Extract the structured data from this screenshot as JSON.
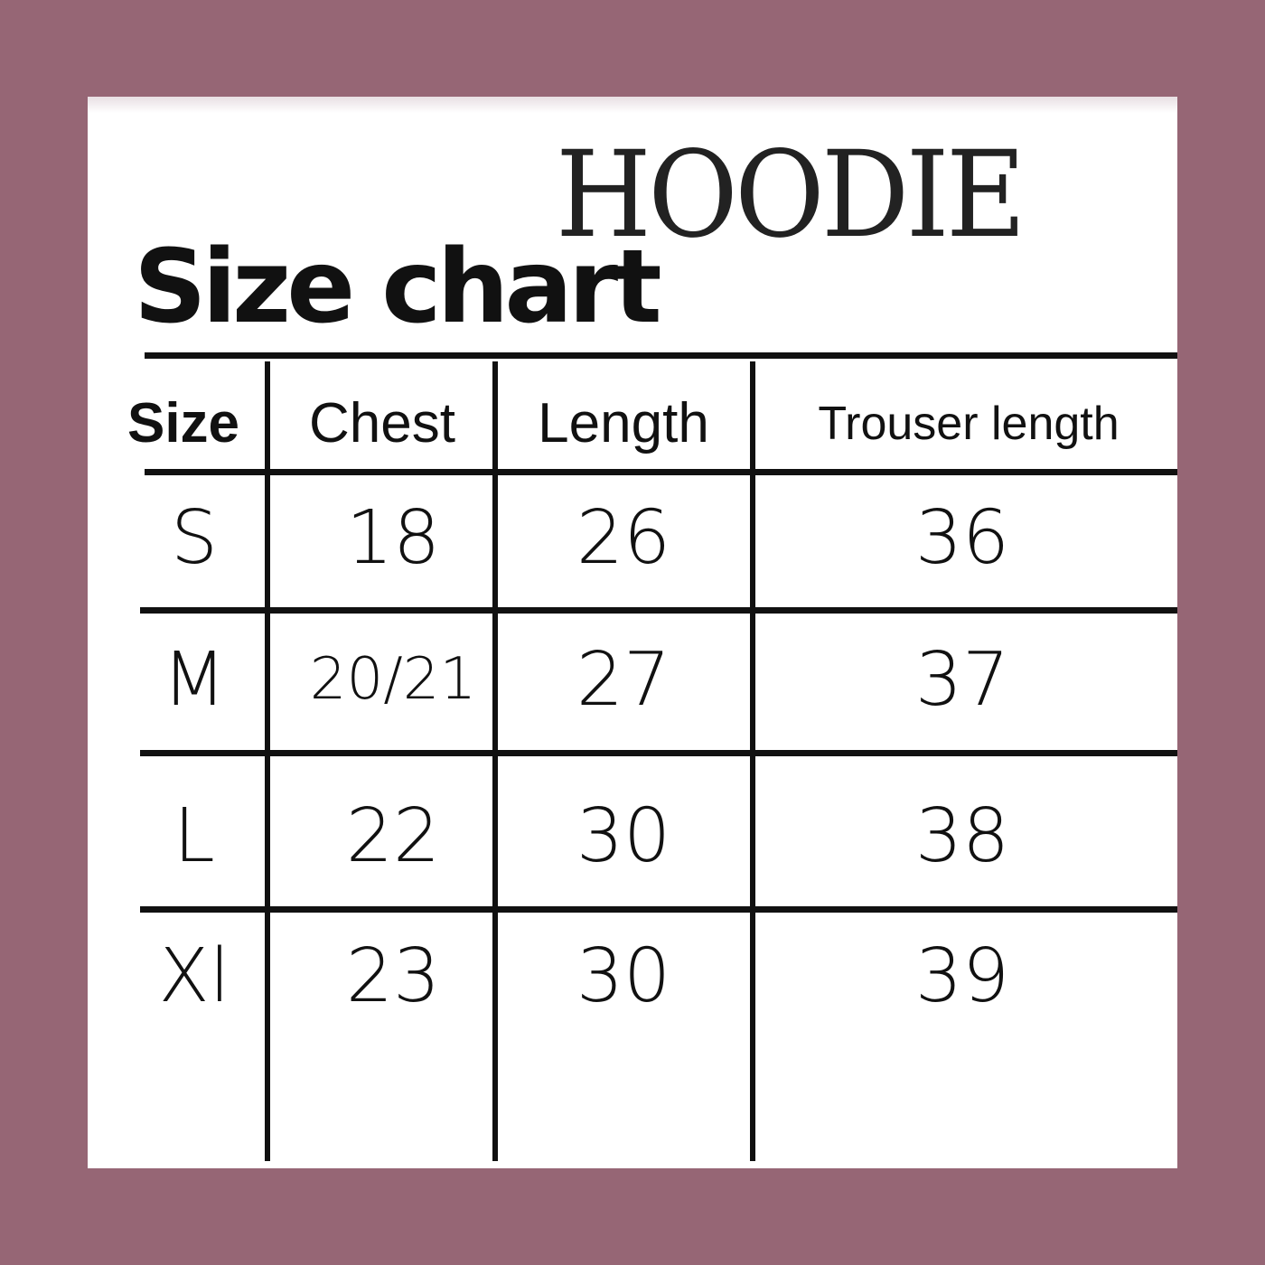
{
  "colors": {
    "background": "#966675",
    "card": "#ffffff",
    "ink": "#111111"
  },
  "title": "HOODIE",
  "subtitle": "Size chart",
  "table": {
    "headers": [
      "Size",
      "Chest",
      "Length",
      "Trouser length"
    ],
    "rows": [
      [
        "S",
        "18",
        "26",
        "36"
      ],
      [
        "M",
        "20/21",
        "27",
        "37"
      ],
      [
        "L",
        "22",
        "30",
        "38"
      ],
      [
        "Xl",
        "23",
        "30",
        "39"
      ]
    ]
  }
}
